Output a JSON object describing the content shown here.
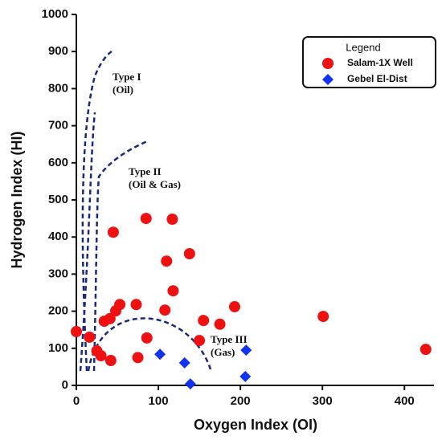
{
  "chart_data": {
    "type": "scatter",
    "x_label": "Oxygen Index (OI)",
    "y_label": "Hydrogen Index (HI)",
    "xlim": [
      0,
      436
    ],
    "ylim": [
      0,
      1000
    ],
    "xticks": [
      0,
      100,
      200,
      300,
      400
    ],
    "yticks": [
      0,
      100,
      200,
      300,
      400,
      500,
      600,
      700,
      800,
      900,
      1000
    ],
    "legend": {
      "title": "Legend",
      "position": "upper right"
    },
    "annotations": [
      "Type I",
      "(Oil)",
      "Type II",
      "(Oil & Gas)",
      "Type III",
      "(Gas)"
    ],
    "series": [
      {
        "name": "Salam-1X Well",
        "color": "#ee1111",
        "marker": "circle",
        "x": [
          0,
          16,
          25,
          30,
          42,
          86,
          75,
          34,
          41,
          48,
          53,
          45,
          85,
          117,
          110,
          138,
          118,
          108,
          73,
          150,
          155,
          175,
          193,
          301,
          426
        ],
        "values": [
          145,
          130,
          93,
          80,
          67,
          128,
          75,
          173,
          180,
          201,
          218,
          413,
          450,
          448,
          335,
          355,
          255,
          203,
          218,
          121,
          175,
          165,
          212,
          186,
          97
        ]
      },
      {
        "name": "Gebel El-Dist",
        "color": "#1133ee",
        "marker": "diamond",
        "x": [
          102,
          132,
          139,
          207,
          206
        ],
        "values": [
          84,
          61,
          4,
          95,
          24
        ]
      }
    ]
  }
}
